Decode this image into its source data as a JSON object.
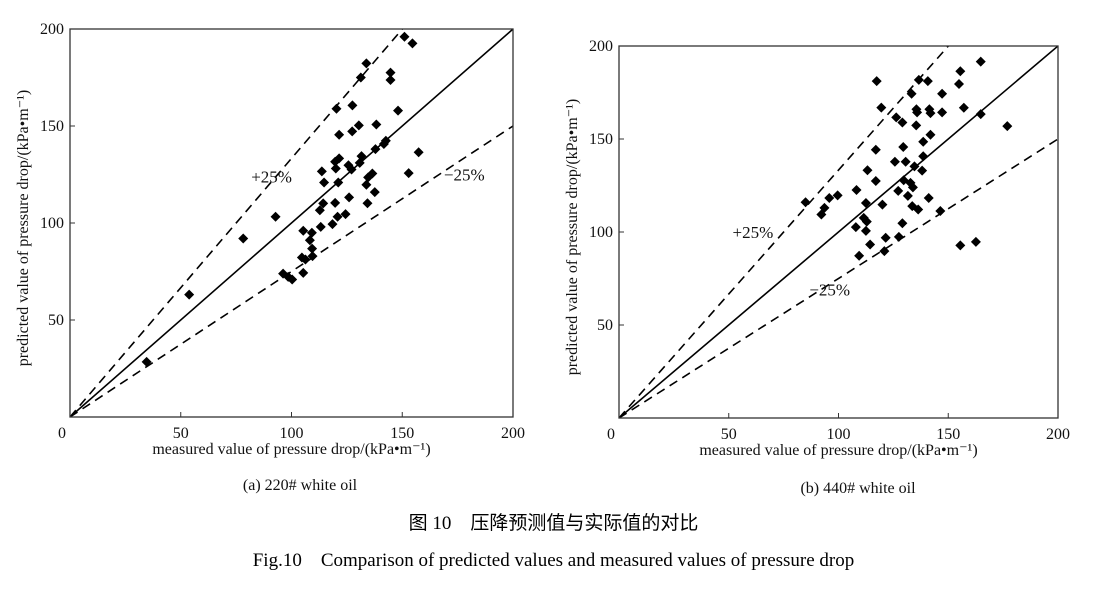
{
  "figure": {
    "title_cn": "图 10　压降预测值与实际值的对比",
    "title_en": "Fig.10　Comparison of predicted values and measured values of pressure drop"
  },
  "chart_data": [
    {
      "type": "scatter",
      "caption": "(a) 220# white oil",
      "xlabel": "measured value of pressure drop/(kPa•m⁻¹)",
      "ylabel": "predicted value of pressure drop/(kPa•m⁻¹)",
      "xlim": [
        0,
        200
      ],
      "ylim": [
        0,
        200
      ],
      "xticks": [
        0,
        50,
        100,
        150,
        200
      ],
      "yticks": [
        50,
        100,
        150,
        200
      ],
      "grid": false,
      "marker": "diamond",
      "color": "#000000",
      "reference_lines": [
        {
          "slope": 1,
          "style": "solid"
        },
        {
          "slope": 1.333,
          "style": "dashed",
          "label": "+25%",
          "label_at": [
            91,
            124
          ]
        },
        {
          "slope": 0.75,
          "style": "dashed",
          "label": "−25%",
          "label_at": [
            178,
            125
          ]
        }
      ],
      "points": [
        [
          151,
          196
        ],
        [
          154.6,
          192.6
        ],
        [
          133.8,
          182.3
        ],
        [
          131.3,
          175
        ],
        [
          144.7,
          177.5
        ],
        [
          144.7,
          173.7
        ],
        [
          127.5,
          160.6
        ],
        [
          120.3,
          158.9
        ],
        [
          148.1,
          157.9
        ],
        [
          130.4,
          150.3
        ],
        [
          138.3,
          150.8
        ],
        [
          127.4,
          147.2
        ],
        [
          121.5,
          145.5
        ],
        [
          142.6,
          142.4
        ],
        [
          141.7,
          140.7
        ],
        [
          137.9,
          138.1
        ],
        [
          157.4,
          136.5
        ],
        [
          131.6,
          134.5
        ],
        [
          130.8,
          131
        ],
        [
          121.5,
          133.3
        ],
        [
          119.7,
          131.6
        ],
        [
          125.7,
          129.8
        ],
        [
          120,
          128.1
        ],
        [
          127.1,
          127.6
        ],
        [
          113.7,
          126.6
        ],
        [
          136.5,
          125.5
        ],
        [
          134.6,
          123.5
        ],
        [
          152.9,
          125.7
        ],
        [
          114.7,
          120.9
        ],
        [
          121.1,
          120.9
        ],
        [
          133.8,
          119.7
        ],
        [
          137.6,
          115.9
        ],
        [
          126,
          113.2
        ],
        [
          114.3,
          110.1
        ],
        [
          119.7,
          110.4
        ],
        [
          134.3,
          110.2
        ],
        [
          112.8,
          106.6
        ],
        [
          120.8,
          103.2
        ],
        [
          124.4,
          104.6
        ],
        [
          118.5,
          99.4
        ],
        [
          113.2,
          98
        ],
        [
          92.8,
          103.2
        ],
        [
          78.2,
          92
        ],
        [
          105.3,
          96
        ],
        [
          109.2,
          95
        ],
        [
          108.3,
          91.1
        ],
        [
          109.3,
          86.8
        ],
        [
          104.7,
          82.2
        ],
        [
          106.3,
          81.2
        ],
        [
          109.5,
          82.9
        ],
        [
          105.3,
          74.3
        ],
        [
          96.2,
          73.9
        ],
        [
          98.5,
          72.2
        ],
        [
          100.3,
          70.9
        ],
        [
          53.8,
          63.1
        ],
        [
          34.6,
          28.4
        ]
      ]
    },
    {
      "type": "scatter",
      "caption": "(b) 440# white oil",
      "xlabel": "measured value of pressure drop/(kPa•m⁻¹)",
      "ylabel": "predicted value of pressure drop/(kPa•m⁻¹)",
      "xlim": [
        0,
        200
      ],
      "ylim": [
        0,
        200
      ],
      "xticks": [
        0,
        50,
        100,
        150,
        200
      ],
      "yticks": [
        50,
        100,
        150,
        200
      ],
      "grid": false,
      "marker": "diamond",
      "color": "#000000",
      "reference_lines": [
        {
          "slope": 1,
          "style": "solid"
        },
        {
          "slope": 1.333,
          "style": "dashed",
          "label": "+25%",
          "label_at": [
            61,
            100
          ]
        },
        {
          "slope": 0.75,
          "style": "dashed",
          "label": "−25%",
          "label_at": [
            96,
            69
          ]
        }
      ],
      "points": [
        [
          164.8,
          191.6
        ],
        [
          155.5,
          186.4
        ],
        [
          117.4,
          181.1
        ],
        [
          136.6,
          181.8
        ],
        [
          140.7,
          181.1
        ],
        [
          154.9,
          179.6
        ],
        [
          133.3,
          174.3
        ],
        [
          147.2,
          174.3
        ],
        [
          119.5,
          166.9
        ],
        [
          135.5,
          166
        ],
        [
          157.1,
          166.8
        ],
        [
          141.4,
          166
        ],
        [
          135.8,
          164.3
        ],
        [
          141.9,
          163.9
        ],
        [
          147.2,
          164.3
        ],
        [
          164.8,
          163.4
        ],
        [
          126.3,
          161.6
        ],
        [
          129.1,
          158.9
        ],
        [
          135.4,
          157.3
        ],
        [
          176.9,
          156.9
        ],
        [
          141.9,
          152.3
        ],
        [
          138.6,
          148.5
        ],
        [
          129.5,
          145.7
        ],
        [
          117,
          144.2
        ],
        [
          138.6,
          140.7
        ],
        [
          125.7,
          137.8
        ],
        [
          130.6,
          137.8
        ],
        [
          134.6,
          135.3
        ],
        [
          113.2,
          133.2
        ],
        [
          138.1,
          133
        ],
        [
          117,
          127.4
        ],
        [
          129.7,
          127.8
        ],
        [
          132.8,
          126.4
        ],
        [
          133.9,
          124
        ],
        [
          127.2,
          122.1
        ],
        [
          108.2,
          122.6
        ],
        [
          131.6,
          119.4
        ],
        [
          141.1,
          118.3
        ],
        [
          99.6,
          119.7
        ],
        [
          95.8,
          118.3
        ],
        [
          85,
          116
        ],
        [
          112.5,
          115.6
        ],
        [
          120,
          114.7
        ],
        [
          133.6,
          113.9
        ],
        [
          136.3,
          112.1
        ],
        [
          146.4,
          111.3
        ],
        [
          93.6,
          113
        ],
        [
          92.2,
          109.4
        ],
        [
          111.5,
          107.6
        ],
        [
          112.9,
          105.6
        ],
        [
          107.9,
          102.6
        ],
        [
          129.1,
          104.7
        ],
        [
          112.5,
          100.6
        ],
        [
          121.5,
          96.9
        ],
        [
          127.5,
          97.4
        ],
        [
          114.4,
          93.3
        ],
        [
          155.5,
          92.8
        ],
        [
          162.6,
          94.7
        ],
        [
          120.9,
          89.7
        ],
        [
          109.4,
          87.2
        ]
      ]
    }
  ]
}
